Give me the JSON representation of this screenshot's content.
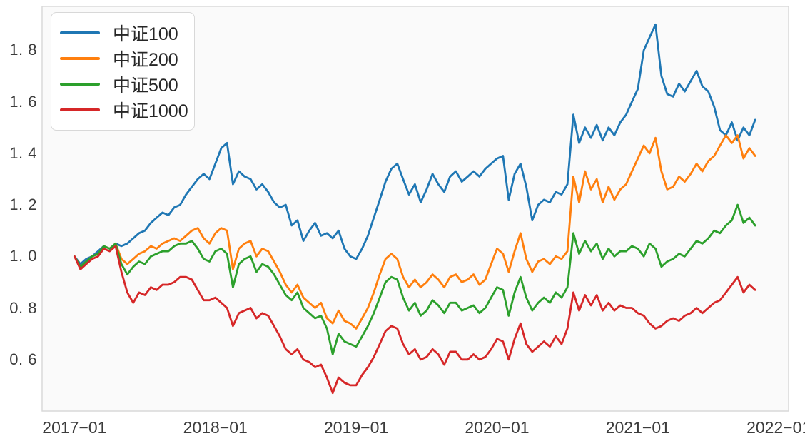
{
  "chart_data": {
    "type": "line",
    "title": "",
    "xlabel": "",
    "ylabel": "",
    "x_unit": "decimal_year",
    "grid": false,
    "legend_position": "upper-left",
    "plot_bg": "#fafafa",
    "spine_color": "#d9d9d9",
    "tick_text_color": "#3c3c3c",
    "xlim": [
      2016.77,
      2022.07
    ],
    "ylim": [
      0.4,
      1.97
    ],
    "xticks": {
      "values": [
        2017,
        2018,
        2019,
        2020,
        2021,
        2022
      ],
      "labels": [
        "2017−01",
        "2018−01",
        "2019−01",
        "2020−01",
        "2021−01",
        "2022−01"
      ]
    },
    "yticks": {
      "values": [
        0.6,
        0.8,
        1.0,
        1.2,
        1.4,
        1.6,
        1.8
      ],
      "labels": [
        "0. 6",
        "0. 8",
        "1. 0",
        "1. 2",
        "1. 4",
        "1. 6",
        "1. 8"
      ]
    },
    "x": [
      2017.0,
      2017.042,
      2017.083,
      2017.125,
      2017.167,
      2017.208,
      2017.25,
      2017.292,
      2017.333,
      2017.375,
      2017.417,
      2017.458,
      2017.5,
      2017.542,
      2017.583,
      2017.625,
      2017.667,
      2017.708,
      2017.75,
      2017.792,
      2017.833,
      2017.875,
      2017.917,
      2017.958,
      2018.0,
      2018.042,
      2018.083,
      2018.125,
      2018.167,
      2018.208,
      2018.25,
      2018.292,
      2018.333,
      2018.375,
      2018.417,
      2018.458,
      2018.5,
      2018.542,
      2018.583,
      2018.625,
      2018.667,
      2018.708,
      2018.75,
      2018.792,
      2018.833,
      2018.875,
      2018.917,
      2018.958,
      2019.0,
      2019.042,
      2019.083,
      2019.125,
      2019.167,
      2019.208,
      2019.25,
      2019.292,
      2019.333,
      2019.375,
      2019.417,
      2019.458,
      2019.5,
      2019.542,
      2019.583,
      2019.625,
      2019.667,
      2019.708,
      2019.75,
      2019.792,
      2019.833,
      2019.875,
      2019.917,
      2019.958,
      2020.0,
      2020.042,
      2020.083,
      2020.125,
      2020.167,
      2020.208,
      2020.25,
      2020.292,
      2020.333,
      2020.375,
      2020.417,
      2020.458,
      2020.5,
      2020.542,
      2020.583,
      2020.625,
      2020.667,
      2020.708,
      2020.75,
      2020.792,
      2020.833,
      2020.875,
      2020.917,
      2020.958,
      2021.0,
      2021.042,
      2021.083,
      2021.125,
      2021.167,
      2021.208,
      2021.25,
      2021.292,
      2021.333,
      2021.375,
      2021.417,
      2021.458,
      2021.5,
      2021.542,
      2021.583,
      2021.625,
      2021.667,
      2021.708,
      2021.75,
      2021.792,
      2021.833
    ],
    "series": [
      {
        "name": "中证100",
        "color": "#1f77b4",
        "values": [
          1.0,
          0.97,
          0.99,
          1.0,
          1.02,
          1.04,
          1.03,
          1.05,
          1.04,
          1.05,
          1.07,
          1.09,
          1.1,
          1.13,
          1.15,
          1.17,
          1.16,
          1.19,
          1.2,
          1.24,
          1.27,
          1.3,
          1.32,
          1.3,
          1.36,
          1.42,
          1.44,
          1.28,
          1.33,
          1.31,
          1.3,
          1.26,
          1.28,
          1.25,
          1.21,
          1.19,
          1.2,
          1.12,
          1.14,
          1.06,
          1.1,
          1.13,
          1.08,
          1.09,
          1.07,
          1.1,
          1.03,
          1.0,
          0.99,
          1.03,
          1.08,
          1.15,
          1.22,
          1.29,
          1.34,
          1.36,
          1.3,
          1.24,
          1.28,
          1.21,
          1.26,
          1.32,
          1.28,
          1.25,
          1.31,
          1.33,
          1.29,
          1.31,
          1.33,
          1.31,
          1.34,
          1.36,
          1.38,
          1.39,
          1.22,
          1.32,
          1.36,
          1.27,
          1.14,
          1.2,
          1.22,
          1.21,
          1.25,
          1.24,
          1.28,
          1.55,
          1.44,
          1.5,
          1.46,
          1.51,
          1.45,
          1.5,
          1.47,
          1.52,
          1.55,
          1.6,
          1.65,
          1.8,
          1.85,
          1.9,
          1.7,
          1.63,
          1.62,
          1.67,
          1.64,
          1.68,
          1.72,
          1.66,
          1.64,
          1.58,
          1.49,
          1.47,
          1.52,
          1.45,
          1.5,
          1.47,
          1.53
        ]
      },
      {
        "name": "中证200",
        "color": "#ff7f0e",
        "values": [
          1.0,
          0.96,
          0.98,
          1.0,
          1.01,
          1.04,
          1.03,
          1.05,
          0.99,
          0.97,
          0.99,
          1.01,
          1.02,
          1.04,
          1.03,
          1.05,
          1.06,
          1.07,
          1.06,
          1.08,
          1.1,
          1.11,
          1.07,
          1.05,
          1.09,
          1.11,
          1.1,
          0.95,
          1.03,
          1.05,
          1.06,
          1.0,
          1.03,
          1.02,
          0.98,
          0.94,
          0.89,
          0.86,
          0.89,
          0.84,
          0.82,
          0.8,
          0.82,
          0.76,
          0.74,
          0.79,
          0.75,
          0.74,
          0.72,
          0.76,
          0.8,
          0.86,
          0.93,
          0.99,
          1.01,
          0.99,
          0.92,
          0.88,
          0.91,
          0.88,
          0.9,
          0.93,
          0.91,
          0.88,
          0.92,
          0.93,
          0.9,
          0.91,
          0.93,
          0.89,
          0.91,
          0.97,
          1.03,
          1.01,
          0.94,
          1.02,
          1.09,
          0.99,
          0.94,
          0.98,
          0.99,
          0.97,
          1.0,
          0.99,
          1.02,
          1.31,
          1.21,
          1.33,
          1.26,
          1.3,
          1.21,
          1.27,
          1.22,
          1.26,
          1.28,
          1.33,
          1.38,
          1.43,
          1.4,
          1.46,
          1.33,
          1.26,
          1.27,
          1.31,
          1.29,
          1.32,
          1.36,
          1.33,
          1.37,
          1.39,
          1.43,
          1.47,
          1.44,
          1.47,
          1.38,
          1.42,
          1.39
        ]
      },
      {
        "name": "中证500",
        "color": "#2ca02c",
        "values": [
          1.0,
          0.96,
          0.98,
          1.0,
          1.01,
          1.04,
          1.03,
          1.05,
          0.97,
          0.93,
          0.96,
          0.98,
          0.97,
          1.0,
          1.01,
          1.02,
          1.02,
          1.04,
          1.05,
          1.05,
          1.06,
          1.03,
          0.99,
          0.98,
          1.02,
          1.03,
          1.01,
          0.88,
          0.97,
          0.99,
          1.0,
          0.94,
          0.97,
          0.96,
          0.93,
          0.89,
          0.85,
          0.83,
          0.86,
          0.8,
          0.78,
          0.76,
          0.77,
          0.72,
          0.62,
          0.7,
          0.67,
          0.66,
          0.65,
          0.69,
          0.73,
          0.78,
          0.84,
          0.9,
          0.92,
          0.91,
          0.84,
          0.79,
          0.82,
          0.77,
          0.79,
          0.83,
          0.81,
          0.78,
          0.82,
          0.82,
          0.79,
          0.8,
          0.81,
          0.78,
          0.8,
          0.84,
          0.88,
          0.87,
          0.77,
          0.86,
          0.92,
          0.84,
          0.79,
          0.82,
          0.84,
          0.82,
          0.86,
          0.84,
          0.88,
          1.09,
          1.01,
          1.06,
          1.02,
          1.05,
          0.99,
          1.03,
          1.0,
          1.02,
          1.02,
          1.04,
          1.03,
          1.0,
          1.05,
          1.03,
          0.96,
          0.98,
          0.99,
          1.01,
          1.0,
          1.03,
          1.06,
          1.05,
          1.07,
          1.1,
          1.09,
          1.12,
          1.14,
          1.2,
          1.13,
          1.15,
          1.12
        ]
      },
      {
        "name": "中证1000",
        "color": "#d62728",
        "values": [
          1.0,
          0.95,
          0.97,
          0.99,
          1.0,
          1.03,
          1.02,
          1.04,
          0.94,
          0.86,
          0.82,
          0.86,
          0.85,
          0.88,
          0.87,
          0.89,
          0.89,
          0.9,
          0.92,
          0.92,
          0.91,
          0.87,
          0.83,
          0.83,
          0.84,
          0.82,
          0.8,
          0.73,
          0.78,
          0.79,
          0.8,
          0.76,
          0.78,
          0.77,
          0.73,
          0.69,
          0.64,
          0.62,
          0.64,
          0.6,
          0.59,
          0.57,
          0.58,
          0.53,
          0.47,
          0.53,
          0.51,
          0.5,
          0.5,
          0.54,
          0.57,
          0.61,
          0.66,
          0.71,
          0.73,
          0.72,
          0.66,
          0.62,
          0.64,
          0.6,
          0.61,
          0.64,
          0.62,
          0.58,
          0.63,
          0.63,
          0.6,
          0.6,
          0.62,
          0.6,
          0.61,
          0.64,
          0.68,
          0.67,
          0.6,
          0.68,
          0.74,
          0.66,
          0.63,
          0.65,
          0.67,
          0.65,
          0.69,
          0.66,
          0.72,
          0.86,
          0.79,
          0.85,
          0.81,
          0.85,
          0.79,
          0.82,
          0.79,
          0.81,
          0.8,
          0.8,
          0.78,
          0.77,
          0.74,
          0.72,
          0.73,
          0.75,
          0.76,
          0.75,
          0.77,
          0.78,
          0.8,
          0.78,
          0.8,
          0.82,
          0.83,
          0.86,
          0.89,
          0.92,
          0.86,
          0.89,
          0.87
        ]
      }
    ]
  }
}
